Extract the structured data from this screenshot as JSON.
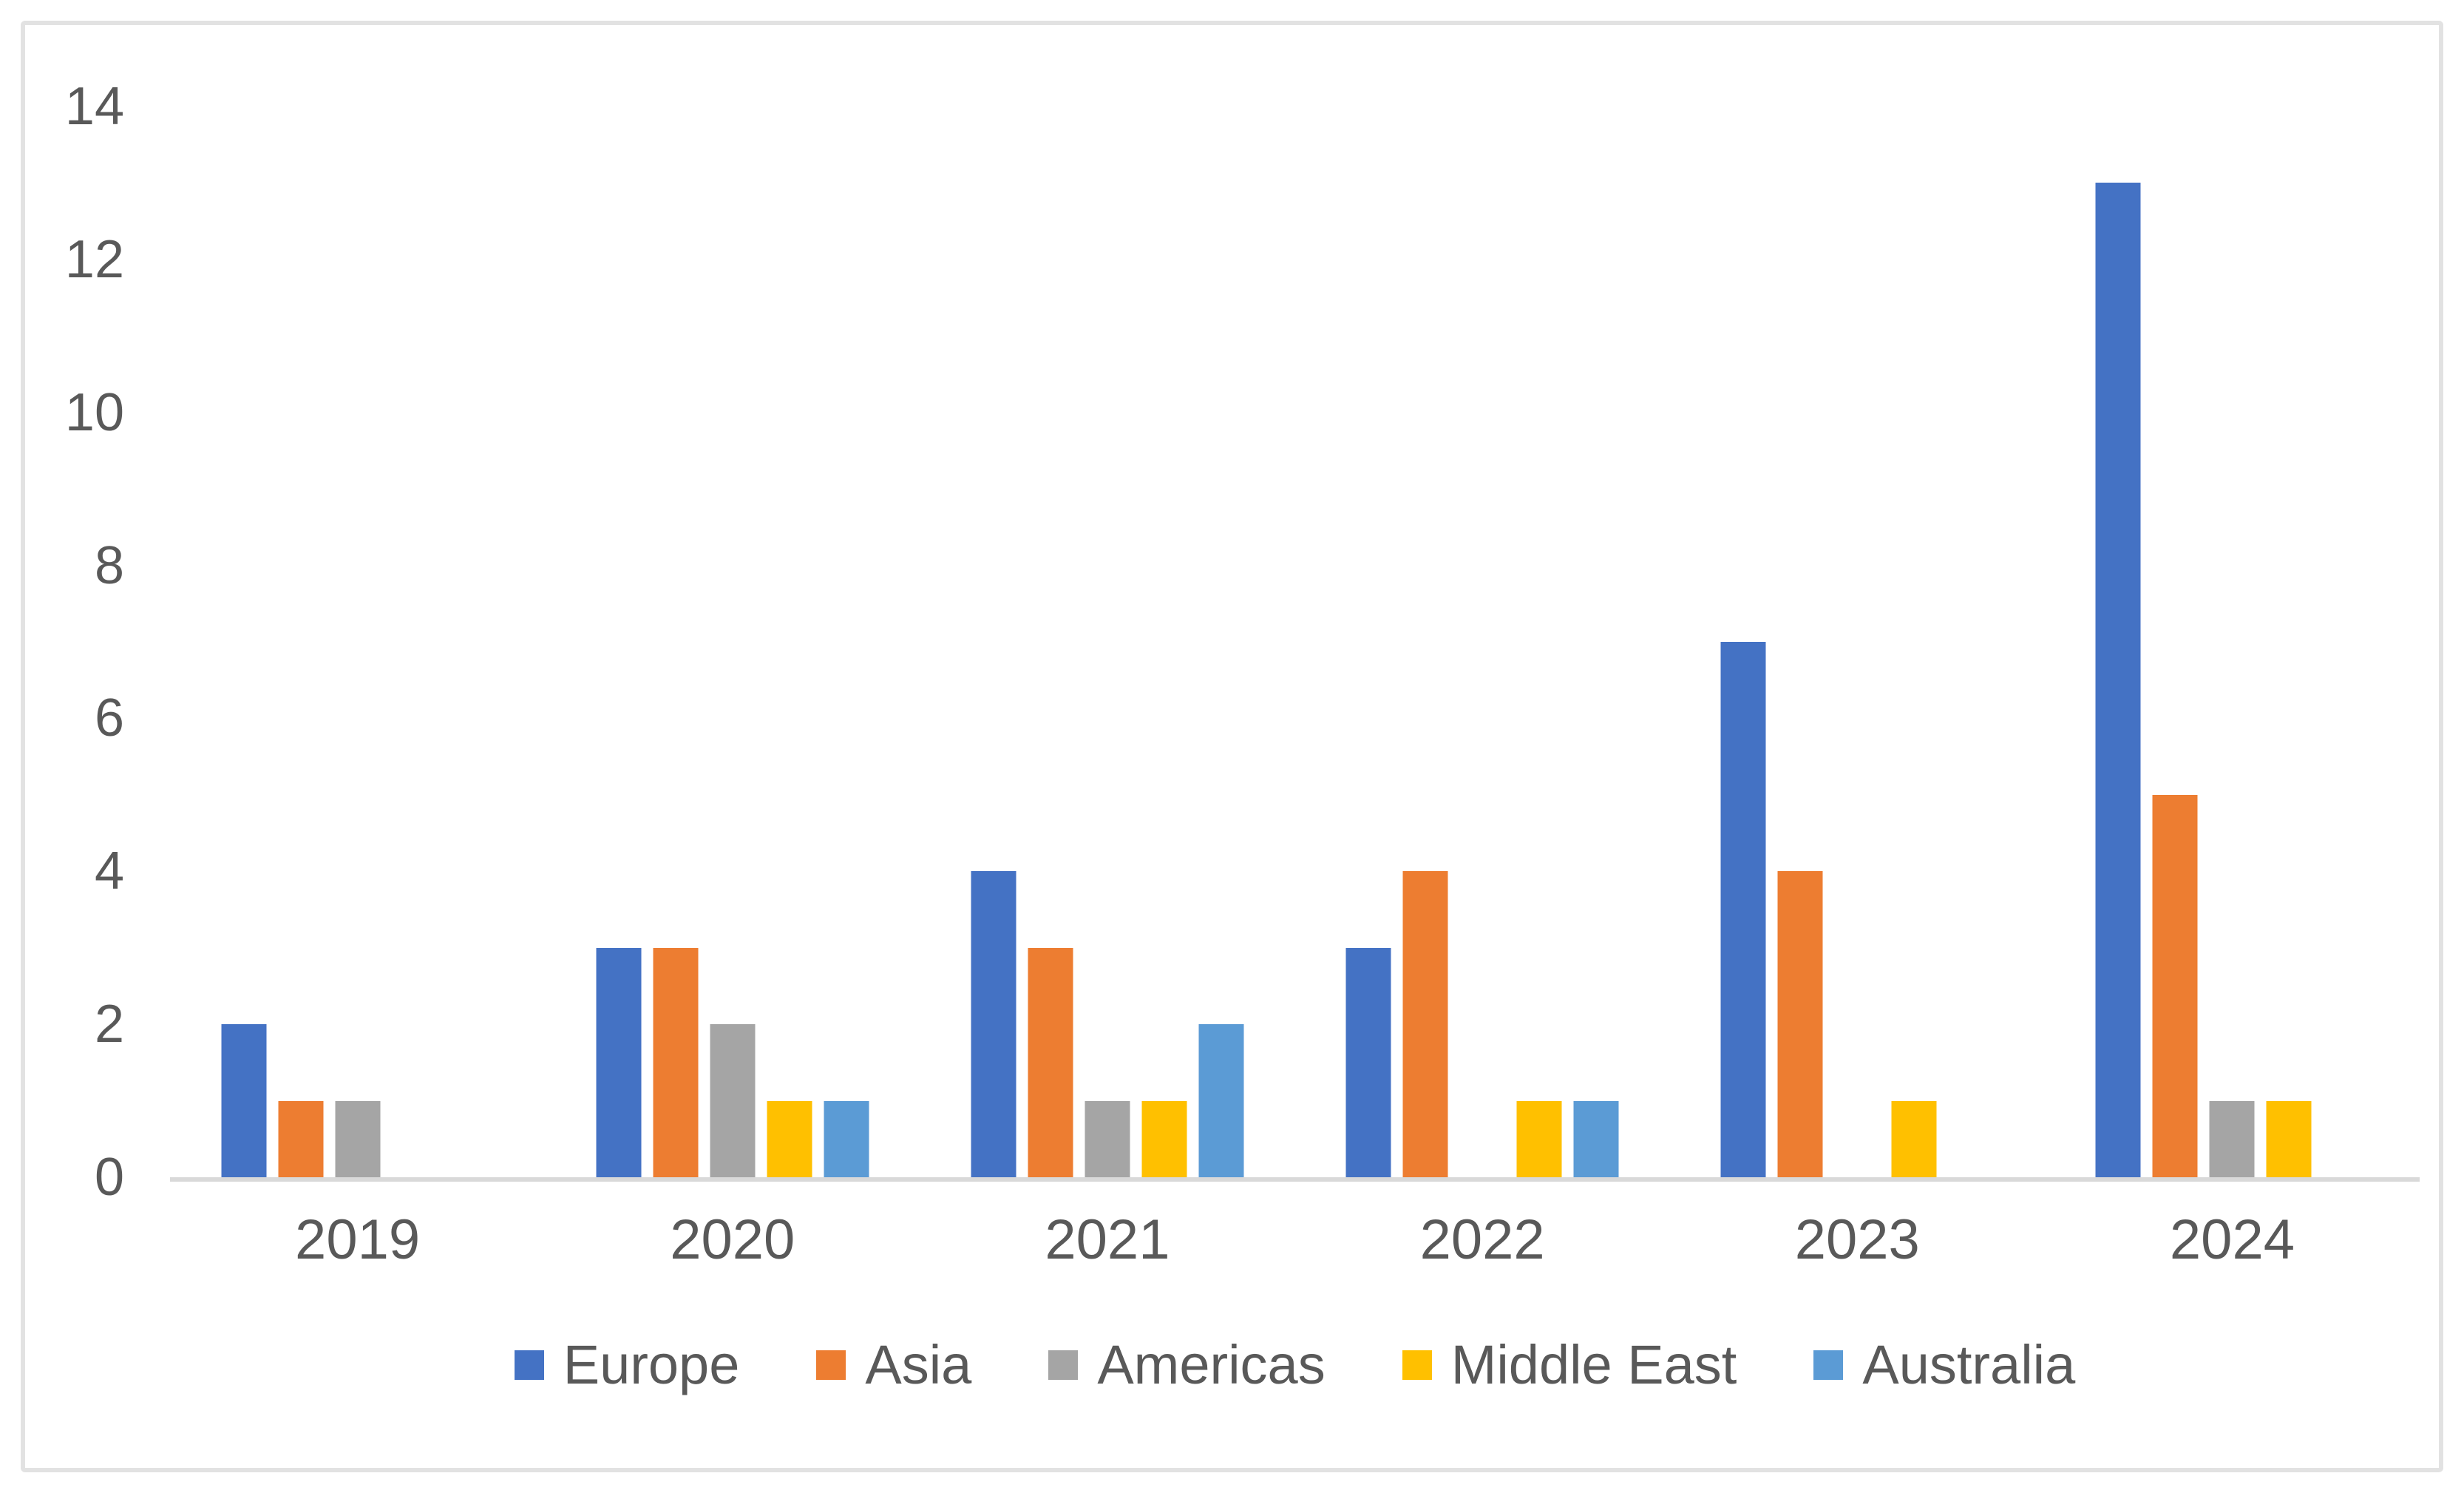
{
  "chart_data": {
    "type": "bar",
    "title": "",
    "xlabel": "",
    "ylabel": "",
    "categories": [
      "2019",
      "2020",
      "2021",
      "2022",
      "2023",
      "2024"
    ],
    "series": [
      {
        "name": "Europe",
        "color": "#4472C4",
        "values": [
          2,
          3,
          4,
          3,
          7,
          13
        ]
      },
      {
        "name": "Asia",
        "color": "#ED7D31",
        "values": [
          1,
          3,
          3,
          4,
          4,
          5
        ]
      },
      {
        "name": "Americas",
        "color": "#A5A5A5",
        "values": [
          1,
          2,
          1,
          0,
          0,
          1
        ]
      },
      {
        "name": "Middle East",
        "color": "#FFC000",
        "values": [
          0,
          1,
          1,
          1,
          1,
          1
        ]
      },
      {
        "name": "Australia",
        "color": "#5B9BD5",
        "values": [
          0,
          1,
          2,
          1,
          0,
          0
        ]
      }
    ],
    "ylim": [
      0,
      14
    ],
    "yticks": [
      "0",
      "2",
      "4",
      "6",
      "8",
      "10",
      "12",
      "14"
    ],
    "grid": false,
    "legend_position": "bottom",
    "colors": {
      "axis_line": "#D9D9D9",
      "text": "#595959",
      "background": "#FFFFFF",
      "frame_border": "#E2E2E2"
    }
  }
}
